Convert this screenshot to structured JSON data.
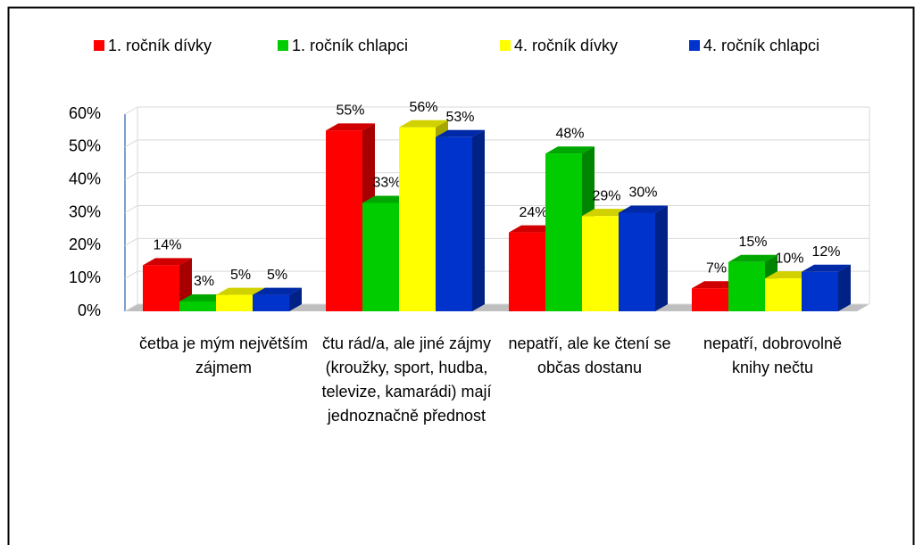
{
  "chart_data": {
    "type": "bar3d",
    "categories": [
      "četba je mým největším zájmem",
      "čtu rád/a, ale jiné zájmy (kroužky, sport, hudba, televize, kamarádi) mají jednoznačně přednost",
      "nepatří, ale ke čtení se občas dostanu",
      "nepatří, dobrovolně knihy nečtu"
    ],
    "series": [
      {
        "name": "1. ročník dívky",
        "color": "#ff0000",
        "values": [
          14,
          55,
          24,
          7
        ],
        "value_labels": [
          "14%",
          "55%",
          "24%",
          "7%"
        ]
      },
      {
        "name": "1. ročník chlapci",
        "color": "#00cc00",
        "values": [
          3,
          33,
          48,
          15
        ],
        "value_labels": [
          "3%",
          "33%",
          "48%",
          "15%"
        ]
      },
      {
        "name": "4. ročník dívky",
        "color": "#ffff00",
        "values": [
          5,
          56,
          29,
          10
        ],
        "value_labels": [
          "5%",
          "56%",
          "29%",
          "10%"
        ]
      },
      {
        "name": "4. ročník chlapci",
        "color": "#0033cc",
        "values": [
          5,
          53,
          30,
          12
        ],
        "value_labels": [
          "5%",
          "53%",
          "30%",
          "12%"
        ]
      }
    ],
    "ylim": [
      0,
      60
    ],
    "yticks": [
      {
        "value": 0,
        "label": "0%"
      },
      {
        "value": 10,
        "label": "10%"
      },
      {
        "value": 20,
        "label": "20%"
      },
      {
        "value": 30,
        "label": "30%"
      },
      {
        "value": 40,
        "label": "40%"
      },
      {
        "value": 50,
        "label": "50%"
      },
      {
        "value": 60,
        "label": "60%"
      }
    ],
    "grid": true,
    "legend": "top"
  }
}
